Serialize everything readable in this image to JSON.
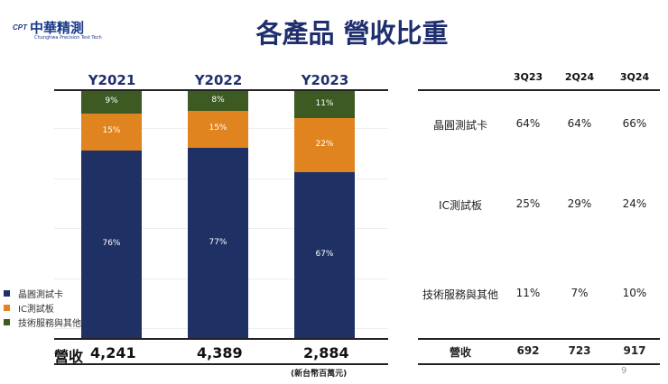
{
  "logo": {
    "mark": "CPT",
    "name": "中華精測",
    "english": "Chunghwa Precision Test Tech"
  },
  "title": "各產品 營收比重",
  "chart_data": {
    "type": "bar",
    "stacked": true,
    "normalized": true,
    "categories": [
      "Y2021",
      "Y2022",
      "Y2023"
    ],
    "series": [
      {
        "name": "晶圓測試卡",
        "values": [
          76,
          77,
          67
        ],
        "color": "#1f3164"
      },
      {
        "name": "IC測試板",
        "values": [
          15,
          15,
          22
        ],
        "color": "#e0841f"
      },
      {
        "name": "技術服務與其他",
        "values": [
          9,
          8,
          11
        ],
        "color": "#3d5a22"
      }
    ],
    "unit": "%",
    "legend": "left"
  },
  "revenue": {
    "label": "營收",
    "values": [
      "4,241",
      "4,389",
      "2,884"
    ],
    "unit": "(新台幣百萬元)"
  },
  "table": {
    "headers": [
      "3Q23",
      "2Q24",
      "3Q24"
    ],
    "rows": [
      {
        "label": "晶圓測試卡",
        "values": [
          "64%",
          "64%",
          "66%"
        ]
      },
      {
        "label": "IC測試板",
        "values": [
          "25%",
          "29%",
          "24%"
        ]
      },
      {
        "label": "技術服務與其他",
        "values": [
          "11%",
          "7%",
          "10%"
        ]
      }
    ],
    "revenue": {
      "label": "營收",
      "values": [
        "692",
        "723",
        "917"
      ]
    }
  },
  "page_number": "9"
}
